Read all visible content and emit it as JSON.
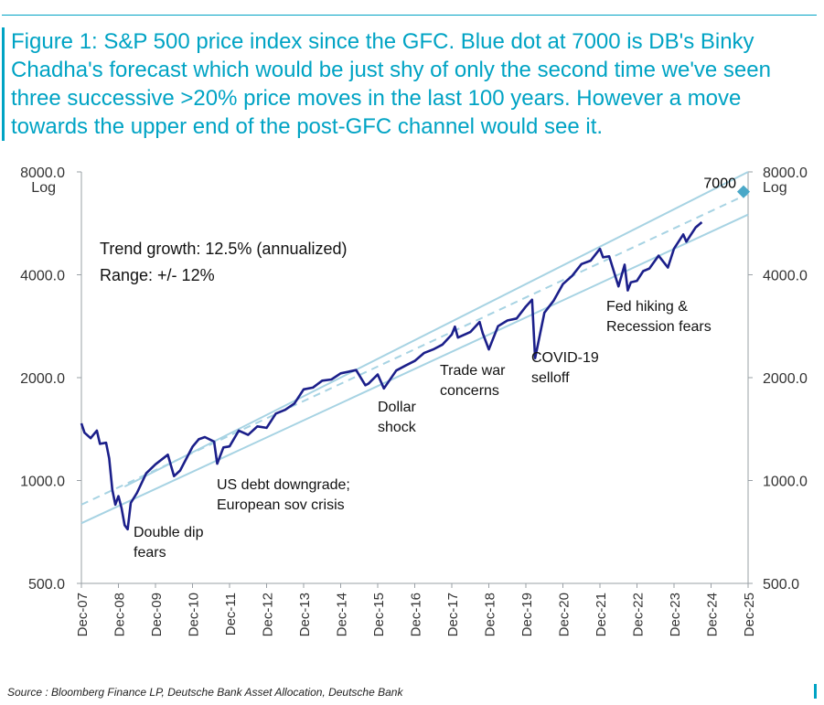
{
  "figure": {
    "title": "Figure 1: S&P 500 price index since the GFC. Blue dot at 7000 is DB's Binky Chadha's forecast which would be just shy of only the second time we've seen three successive >20% price moves in the last 100 years. However a move towards the upper end of the post-GFC channel would see it.",
    "source": "Source : Bloomberg Finance LP, Deutsche Bank Asset Allocation, Deutsche Bank"
  },
  "colors": {
    "title": "#00a3c4",
    "series": "#1b1f8a",
    "channel": "#a7d3e3",
    "trend": "#a7d3e3",
    "forecast": "#4aa8c8",
    "axis": "#9aa0a6"
  },
  "chart_data": {
    "type": "line",
    "yscale": "log",
    "ylim": [
      500,
      8000
    ],
    "ylim_right": [
      500,
      8000
    ],
    "ylabel": "Log",
    "ylabel_right": "Log",
    "yticks": [
      500,
      1000,
      2000,
      4000,
      8000
    ],
    "ytick_labels": [
      "500.0",
      "1000.0",
      "2000.0",
      "4000.0",
      "8000.0"
    ],
    "xlim": [
      "2007-12",
      "2025-12"
    ],
    "xticks": [
      "2007-12",
      "2008-12",
      "2009-12",
      "2010-12",
      "2011-12",
      "2012-12",
      "2013-12",
      "2014-12",
      "2015-12",
      "2016-12",
      "2017-12",
      "2018-12",
      "2019-12",
      "2020-12",
      "2021-12",
      "2022-12",
      "2023-12",
      "2024-12",
      "2025-12"
    ],
    "xtick_labels": [
      "Dec-07",
      "Dec-08",
      "Dec-09",
      "Dec-10",
      "Dec-11",
      "Dec-12",
      "Dec-13",
      "Dec-14",
      "Dec-15",
      "Dec-16",
      "Dec-17",
      "Dec-18",
      "Dec-19",
      "Dec-20",
      "Dec-21",
      "Dec-22",
      "Dec-23",
      "Dec-24",
      "Dec-25"
    ],
    "series": [
      {
        "kind": "price",
        "x": [
          "2007-12",
          "2008-01",
          "2008-03",
          "2008-05",
          "2008-06",
          "2008-08",
          "2008-09",
          "2008-10",
          "2008-11",
          "2008-12",
          "2009-01",
          "2009-02",
          "2009-03",
          "2009-04",
          "2009-06",
          "2009-09",
          "2009-12",
          "2010-04",
          "2010-06",
          "2010-08",
          "2010-12",
          "2011-02",
          "2011-04",
          "2011-07",
          "2011-08",
          "2011-10",
          "2011-12",
          "2012-03",
          "2012-06",
          "2012-09",
          "2012-12",
          "2013-03",
          "2013-06",
          "2013-09",
          "2013-12",
          "2014-03",
          "2014-06",
          "2014-09",
          "2014-12",
          "2015-05",
          "2015-08",
          "2015-09",
          "2015-12",
          "2016-02",
          "2016-06",
          "2016-09",
          "2016-12",
          "2017-03",
          "2017-06",
          "2017-09",
          "2017-12",
          "2018-01",
          "2018-02",
          "2018-06",
          "2018-09",
          "2018-10",
          "2018-12",
          "2019-03",
          "2019-06",
          "2019-09",
          "2019-12",
          "2020-02",
          "2020-03",
          "2020-06",
          "2020-09",
          "2020-12",
          "2021-03",
          "2021-06",
          "2021-09",
          "2021-12",
          "2022-01",
          "2022-03",
          "2022-06",
          "2022-08",
          "2022-09",
          "2022-10",
          "2022-12",
          "2023-02",
          "2023-04",
          "2023-07",
          "2023-10",
          "2023-12",
          "2024-03",
          "2024-04",
          "2024-07",
          "2024-09"
        ],
        "values": [
          1470,
          1380,
          1330,
          1400,
          1280,
          1290,
          1160,
          940,
          850,
          900,
          830,
          740,
          720,
          860,
          920,
          1050,
          1115,
          1190,
          1030,
          1070,
          1255,
          1320,
          1340,
          1300,
          1120,
          1250,
          1258,
          1400,
          1360,
          1440,
          1426,
          1570,
          1610,
          1680,
          1848,
          1870,
          1960,
          1975,
          2059,
          2105,
          1900,
          1920,
          2044,
          1860,
          2099,
          2170,
          2239,
          2360,
          2420,
          2500,
          2674,
          2820,
          2620,
          2720,
          2910,
          2700,
          2420,
          2830,
          2940,
          2980,
          3231,
          3380,
          2280,
          3100,
          3360,
          3756,
          3970,
          4300,
          4400,
          4766,
          4500,
          4530,
          3700,
          4280,
          3600,
          3800,
          3840,
          4100,
          4170,
          4550,
          4200,
          4770,
          5250,
          5000,
          5500,
          5700
        ]
      },
      {
        "kind": "trend",
        "note": "Trend growth: 12.5% (annualized)",
        "x": [
          "2007-12",
          "2025-12"
        ],
        "values": [
          850,
          6900
        ]
      },
      {
        "kind": "upper channel",
        "x": [
          "2009-02",
          "2025-12"
        ],
        "values": [
          960,
          8000
        ]
      },
      {
        "kind": "lower channel",
        "x": [
          "2007-12",
          "2025-12"
        ],
        "values": [
          750,
          6000
        ]
      }
    ],
    "forecast_point": {
      "x": "2025-12",
      "value": 7000,
      "label": "7000"
    },
    "annotations": [
      {
        "text": "Trend growth: 12.5% (annualized)",
        "kind": "note"
      },
      {
        "text": "Range: +/- 12%",
        "kind": "note"
      },
      {
        "text": "Double dip\nfears",
        "x": "2009-03"
      },
      {
        "text": "US debt downgrade;\nEuropean sov crisis",
        "x": "2011-08"
      },
      {
        "text": "Dollar\nshock",
        "x": "2016-02"
      },
      {
        "text": "Trade war\nconcerns",
        "x": "2018-12"
      },
      {
        "text": "COVID-19\nselloff",
        "x": "2020-03"
      },
      {
        "text": "Fed hiking &\nRecession fears",
        "x": "2022-10"
      }
    ]
  }
}
